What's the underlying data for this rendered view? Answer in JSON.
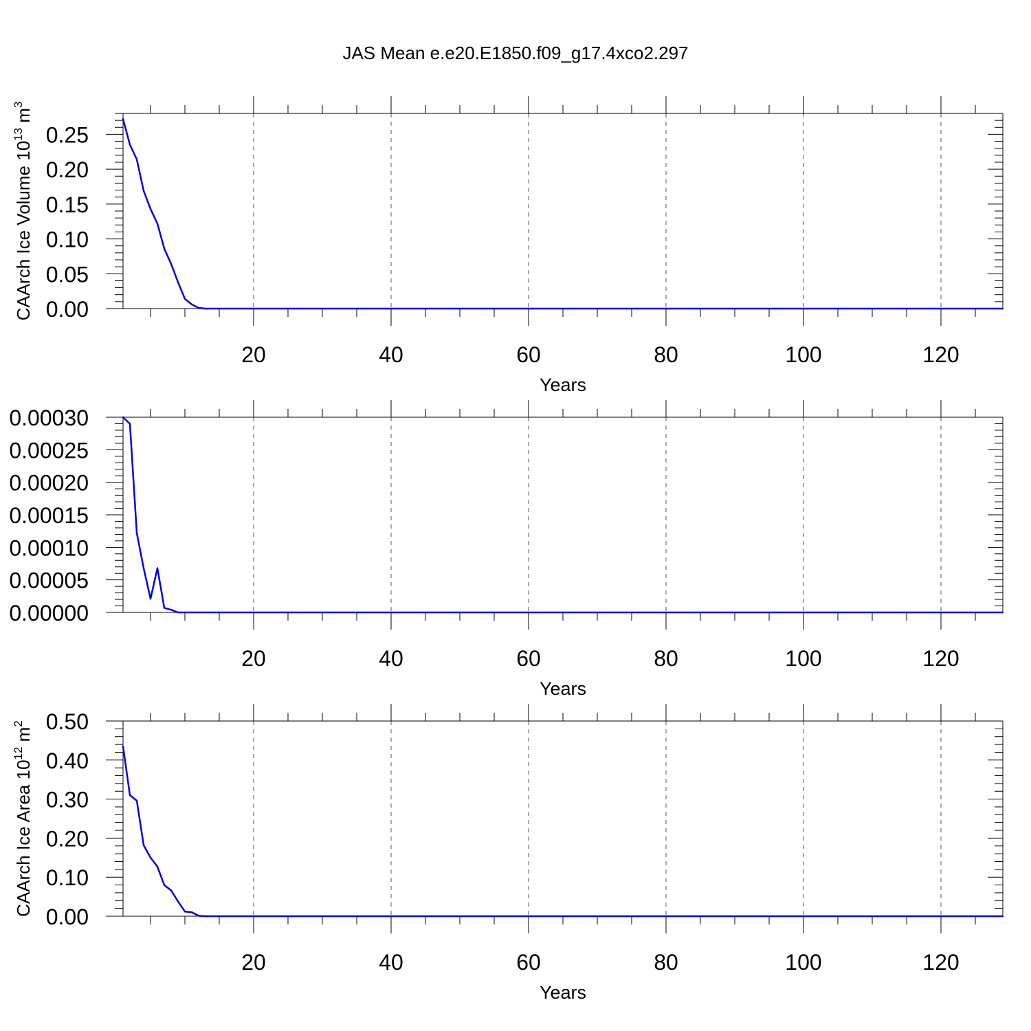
{
  "page": {
    "title": "JAS Mean e.e20.E1850.f09_g17.4xco2.297"
  },
  "colors": {
    "series": "#0000ee",
    "axis": "#000000",
    "grid": "#555555"
  },
  "chart_data": [
    {
      "type": "line",
      "title": "",
      "xlabel": "Years",
      "ylabel": {
        "base": "CAArch Ice Volume 10",
        "exp": "13",
        "unit": " m",
        "unit_exp": "3"
      },
      "xlim": [
        1,
        129
      ],
      "ylim": [
        0,
        0.28
      ],
      "xticks": [
        20,
        40,
        60,
        80,
        100,
        120
      ],
      "yticks": [
        0.0,
        0.05,
        0.1,
        0.15,
        0.2,
        0.25
      ],
      "ytick_labels": [
        "0.00",
        "0.05",
        "0.10",
        "0.15",
        "0.20",
        "0.25"
      ],
      "grid": "vertical dashed at major x ticks",
      "x": [
        1,
        2,
        3,
        4,
        5,
        6,
        7,
        8,
        9,
        10,
        11,
        12,
        13,
        129
      ],
      "y": [
        0.272,
        0.235,
        0.214,
        0.169,
        0.143,
        0.122,
        0.086,
        0.064,
        0.038,
        0.014,
        0.006,
        0.001,
        0.0,
        0.0
      ]
    },
    {
      "type": "line",
      "title": "",
      "xlabel": "Years",
      "ylabel": null,
      "xlim": [
        1,
        129
      ],
      "ylim": [
        0,
        0.0003
      ],
      "xticks": [
        20,
        40,
        60,
        80,
        100,
        120
      ],
      "yticks": [
        0.0,
        5e-05,
        0.0001,
        0.00015,
        0.0002,
        0.00025,
        0.0003
      ],
      "ytick_labels": [
        "0.00000",
        "0.00005",
        "0.00010",
        "0.00015",
        "0.00020",
        "0.00025",
        "0.00030"
      ],
      "grid": "vertical dashed at major x ticks",
      "x": [
        1,
        2,
        3,
        4,
        5,
        6,
        7,
        8,
        9,
        10,
        129
      ],
      "y": [
        0.0003,
        0.00029,
        0.000122,
        6.8e-05,
        2.1e-05,
        6.8e-05,
        7e-06,
        4e-06,
        0.0,
        0.0,
        0.0
      ]
    },
    {
      "type": "line",
      "title": "",
      "xlabel": "Years",
      "ylabel": {
        "base": "CAArch Ice Area 10",
        "exp": "12",
        "unit": " m",
        "unit_exp": "2"
      },
      "xlim": [
        1,
        129
      ],
      "ylim": [
        0,
        0.5
      ],
      "xticks": [
        20,
        40,
        60,
        80,
        100,
        120
      ],
      "yticks": [
        0.0,
        0.1,
        0.2,
        0.3,
        0.4,
        0.5
      ],
      "ytick_labels": [
        "0.00",
        "0.10",
        "0.20",
        "0.30",
        "0.40",
        "0.50"
      ],
      "grid": "vertical dashed at major x ticks",
      "x": [
        1,
        2,
        3,
        4,
        5,
        6,
        7,
        8,
        9,
        10,
        11,
        12,
        13,
        129
      ],
      "y": [
        0.435,
        0.31,
        0.296,
        0.182,
        0.15,
        0.127,
        0.08,
        0.066,
        0.038,
        0.012,
        0.01,
        0.001,
        0.0,
        0.0
      ]
    }
  ]
}
